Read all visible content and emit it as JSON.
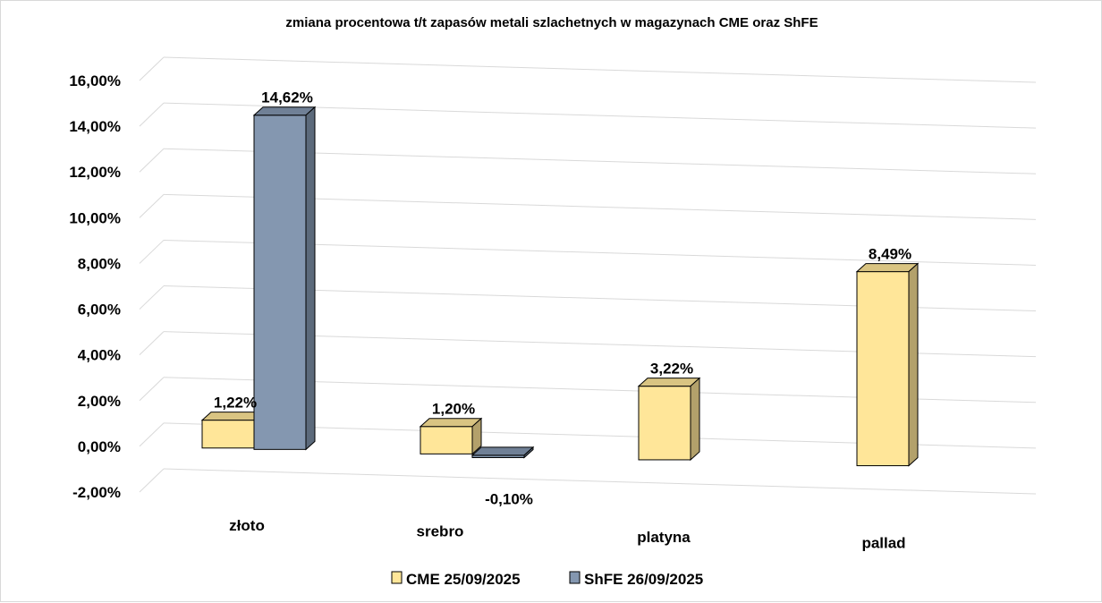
{
  "chart_data": {
    "type": "bar",
    "title": "zmiana procentowa t/t zapasów metali szlachetnych w magazynach CME oraz ShFE",
    "categories": [
      "złoto",
      "srebro",
      "platyna",
      "pallad"
    ],
    "series": [
      {
        "name": "CME 25/09/2025",
        "values": [
          1.22,
          1.2,
          3.22,
          8.49
        ],
        "labels": [
          "1,22%",
          "1,20%",
          "3,22%",
          "8,49%"
        ],
        "color": "#FFE699",
        "edge": "#000000"
      },
      {
        "name": "ShFE 26/09/2025",
        "values": [
          14.62,
          -0.1,
          null,
          null
        ],
        "labels": [
          "14,62%",
          "-0,10%",
          "",
          ""
        ],
        "color": "#8497B0",
        "edge": "#000000"
      }
    ],
    "ylim": [
      -2,
      16
    ],
    "y_ticks": [
      -2,
      0,
      2,
      4,
      6,
      8,
      10,
      12,
      14,
      16
    ],
    "y_tick_labels": [
      "-2,00%",
      "0,00%",
      "2,00%",
      "4,00%",
      "6,00%",
      "8,00%",
      "10,00%",
      "12,00%",
      "14,00%",
      "16,00%"
    ],
    "xlabel": "",
    "ylabel": "",
    "grid": true,
    "style": "3d-column",
    "legend_position": "bottom"
  }
}
